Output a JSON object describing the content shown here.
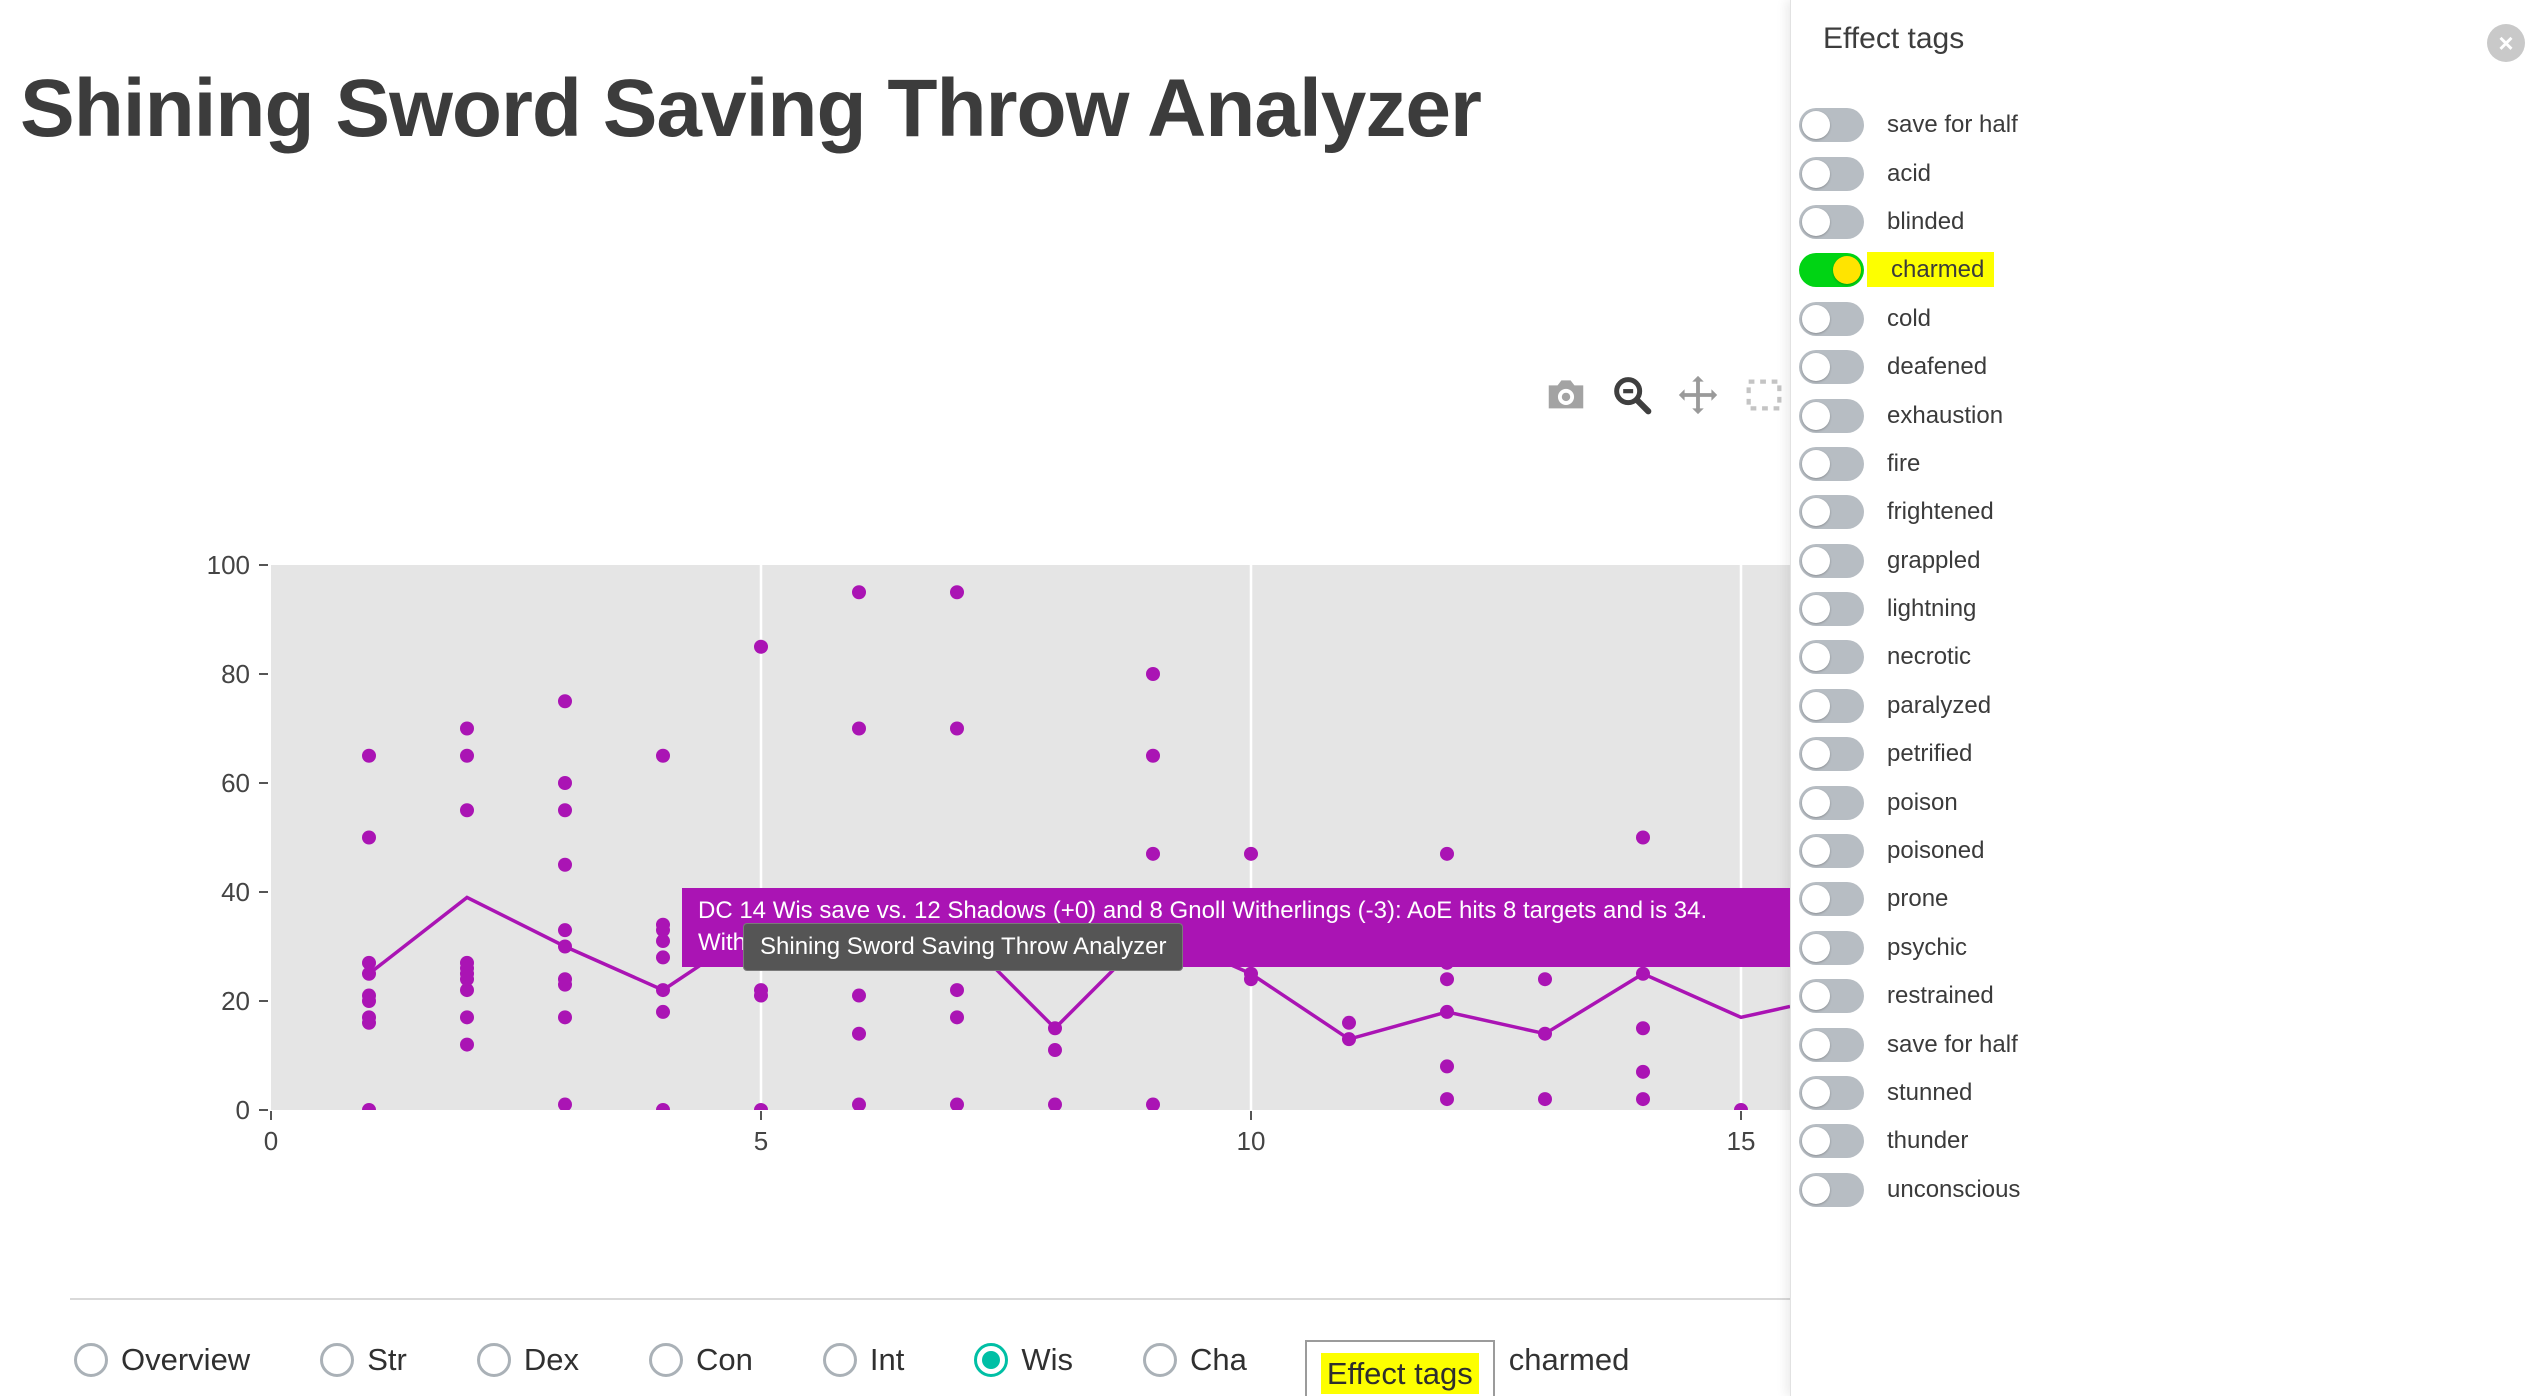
{
  "colors": {
    "accent_purple": "#aa14b4",
    "radio_selected_teal": "#00bfa5",
    "toggle_on_green": "#00d414",
    "toggle_knob_yellow": "#ffe400",
    "highlight_yellow": "#fdff00",
    "plot_bg": "#e5e5e5"
  },
  "header": {
    "title": "Shining Sword Saving Throw Analyzer"
  },
  "modebar": {
    "icons": [
      "camera",
      "zoom",
      "pan",
      "box-select"
    ]
  },
  "hover_tooltip": {
    "line1": "DC 14 Wis save vs. 12 Shadows (+0) and 8 Gnoll Witherlings (-3): AoE hits 8 targets and is 34.",
    "line2": "With"
  },
  "native_tooltip": {
    "text": "Shining Sword Saving Throw Analyzer"
  },
  "panel": {
    "title": "Effect tags",
    "close_label": "×",
    "toggles": [
      {
        "label": "save for half",
        "on": false,
        "highlighted": false
      },
      {
        "label": "acid",
        "on": false,
        "highlighted": false
      },
      {
        "label": "blinded",
        "on": false,
        "highlighted": false
      },
      {
        "label": "charmed",
        "on": true,
        "highlighted": true
      },
      {
        "label": "cold",
        "on": false,
        "highlighted": false
      },
      {
        "label": "deafened",
        "on": false,
        "highlighted": false
      },
      {
        "label": "exhaustion",
        "on": false,
        "highlighted": false
      },
      {
        "label": "fire",
        "on": false,
        "highlighted": false
      },
      {
        "label": "frightened",
        "on": false,
        "highlighted": false
      },
      {
        "label": "grappled",
        "on": false,
        "highlighted": false
      },
      {
        "label": "lightning",
        "on": false,
        "highlighted": false
      },
      {
        "label": "necrotic",
        "on": false,
        "highlighted": false
      },
      {
        "label": "paralyzed",
        "on": false,
        "highlighted": false
      },
      {
        "label": "petrified",
        "on": false,
        "highlighted": false
      },
      {
        "label": "poison",
        "on": false,
        "highlighted": false
      },
      {
        "label": "poisoned",
        "on": false,
        "highlighted": false
      },
      {
        "label": "prone",
        "on": false,
        "highlighted": false
      },
      {
        "label": "psychic",
        "on": false,
        "highlighted": false
      },
      {
        "label": "restrained",
        "on": false,
        "highlighted": false
      },
      {
        "label": "save for half",
        "on": false,
        "highlighted": false
      },
      {
        "label": "stunned",
        "on": false,
        "highlighted": false
      },
      {
        "label": "thunder",
        "on": false,
        "highlighted": false
      },
      {
        "label": "unconscious",
        "on": false,
        "highlighted": false
      }
    ]
  },
  "controls": {
    "radios": [
      {
        "label": "Overview",
        "selected": false
      },
      {
        "label": "Str",
        "selected": false
      },
      {
        "label": "Dex",
        "selected": false
      },
      {
        "label": "Con",
        "selected": false
      },
      {
        "label": "Int",
        "selected": false
      },
      {
        "label": "Wis",
        "selected": true
      },
      {
        "label": "Cha",
        "selected": false
      }
    ],
    "effect_tags_button": {
      "label": "Effect tags",
      "highlighted": true
    },
    "active_tags_text": "charmed"
  },
  "chart_data": {
    "type": "scatter",
    "title": "",
    "xlabel": "",
    "ylabel": "",
    "xlim": [
      0,
      15.5
    ],
    "ylim": [
      0,
      100
    ],
    "xticks": [
      0,
      5,
      10,
      15
    ],
    "yticks": [
      0,
      20,
      40,
      60,
      80,
      100
    ],
    "grid": "vertical-white",
    "legend": "none",
    "points": [
      [
        1,
        0
      ],
      [
        1,
        16
      ],
      [
        1,
        17
      ],
      [
        1,
        20
      ],
      [
        1,
        21
      ],
      [
        1,
        25
      ],
      [
        1,
        27
      ],
      [
        1,
        50
      ],
      [
        1,
        65
      ],
      [
        2,
        12
      ],
      [
        2,
        17
      ],
      [
        2,
        22
      ],
      [
        2,
        24
      ],
      [
        2,
        25
      ],
      [
        2,
        26
      ],
      [
        2,
        27
      ],
      [
        2,
        55
      ],
      [
        2,
        65
      ],
      [
        2,
        70
      ],
      [
        3,
        1
      ],
      [
        3,
        17
      ],
      [
        3,
        23
      ],
      [
        3,
        24
      ],
      [
        3,
        30
      ],
      [
        3,
        33
      ],
      [
        3,
        45
      ],
      [
        3,
        55
      ],
      [
        3,
        60
      ],
      [
        3,
        75
      ],
      [
        4,
        0
      ],
      [
        4,
        18
      ],
      [
        4,
        22
      ],
      [
        4,
        28
      ],
      [
        4,
        31
      ],
      [
        4,
        33
      ],
      [
        4,
        34
      ],
      [
        4,
        65
      ],
      [
        5,
        0
      ],
      [
        5,
        21
      ],
      [
        5,
        22
      ],
      [
        5,
        85
      ],
      [
        6,
        1
      ],
      [
        6,
        14
      ],
      [
        6,
        21
      ],
      [
        6,
        70
      ],
      [
        6,
        95
      ],
      [
        7,
        1
      ],
      [
        7,
        17
      ],
      [
        7,
        22
      ],
      [
        7,
        70
      ],
      [
        7,
        95
      ],
      [
        8,
        1
      ],
      [
        8,
        11
      ],
      [
        8,
        15
      ],
      [
        9,
        1
      ],
      [
        9,
        28
      ],
      [
        9,
        47
      ],
      [
        9,
        65
      ],
      [
        9,
        80
      ],
      [
        10,
        24
      ],
      [
        10,
        25
      ],
      [
        10,
        47
      ],
      [
        11,
        13
      ],
      [
        11,
        16
      ],
      [
        12,
        2
      ],
      [
        12,
        8
      ],
      [
        12,
        18
      ],
      [
        12,
        24
      ],
      [
        12,
        27
      ],
      [
        12,
        47
      ],
      [
        13,
        2
      ],
      [
        13,
        14
      ],
      [
        13,
        24
      ],
      [
        14,
        2
      ],
      [
        14,
        7
      ],
      [
        14,
        15
      ],
      [
        14,
        25
      ],
      [
        14,
        50
      ],
      [
        15,
        0
      ]
    ],
    "median_line": {
      "x": [
        1,
        2,
        3,
        4,
        5,
        6,
        7,
        8,
        9,
        10,
        11,
        12,
        13,
        14,
        15,
        15.5
      ],
      "y": [
        25,
        39,
        30,
        22,
        34,
        34,
        33,
        15,
        33,
        25,
        13,
        18,
        14,
        25,
        17,
        19
      ]
    }
  }
}
